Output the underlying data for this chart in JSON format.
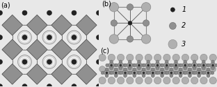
{
  "fig_width": 3.12,
  "fig_height": 1.26,
  "dpi": 100,
  "bg_color": "#e8e8e8",
  "panel_a": {
    "label": "(a)",
    "bg": "#c8c8c8",
    "oct_color": "#909090",
    "oct_edge": "#444444",
    "large_color": "#d8d8d8",
    "large_edge": "#888888",
    "small_color": "#222222",
    "small_edge": "#111111"
  },
  "panel_b": {
    "label": "(b)",
    "box_color": "#888888",
    "large_color": "#b0b0b0",
    "large_edge": "#888888",
    "small_color": "#222222",
    "small_edge": "#111111",
    "med_color": "#909090",
    "med_edge": "#666666",
    "line_color": "#555555"
  },
  "panel_c": {
    "label": "(c)",
    "large_color": "#b0b0b0",
    "large_edge": "#888888",
    "small_color": "#333333",
    "small_edge": "#222222",
    "med_color": "#888888",
    "med_edge": "#666666",
    "line_color": "#555555"
  },
  "legend": {
    "colors": [
      "#222222",
      "#909090",
      "#b0b0b0"
    ],
    "edge_colors": [
      "#111111",
      "#666666",
      "#888888"
    ],
    "labels": [
      "1",
      "2",
      "3"
    ],
    "radii": [
      0.04,
      0.065,
      0.085
    ]
  }
}
